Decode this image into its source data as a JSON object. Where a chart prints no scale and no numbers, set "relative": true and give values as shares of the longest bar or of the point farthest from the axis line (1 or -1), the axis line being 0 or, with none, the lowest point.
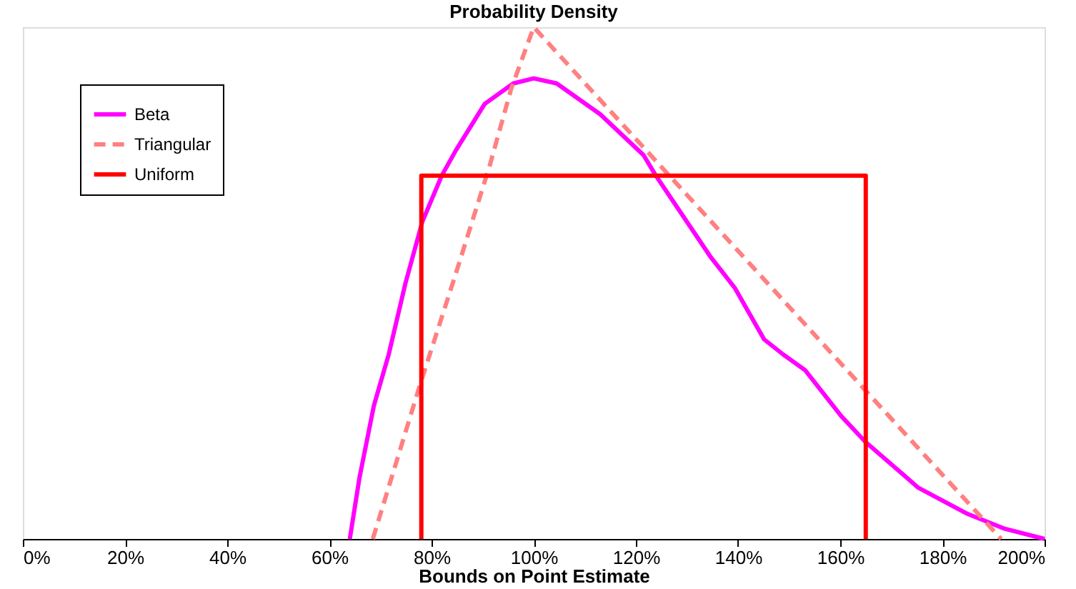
{
  "chart_data": {
    "type": "line",
    "title": "Probability Density",
    "xlabel": "Bounds on Point Estimate",
    "relative": true,
    "xlim": [
      0,
      200
    ],
    "xticks": [
      {
        "value": 0,
        "label": "0%"
      },
      {
        "value": 20,
        "label": "20%"
      },
      {
        "value": 40,
        "label": "40%"
      },
      {
        "value": 60,
        "label": "60%"
      },
      {
        "value": 80,
        "label": "80%"
      },
      {
        "value": 100,
        "label": "100%"
      },
      {
        "value": 120,
        "label": "120%"
      },
      {
        "value": 140,
        "label": "140%"
      },
      {
        "value": 160,
        "label": "160%"
      },
      {
        "value": 180,
        "label": "180%"
      },
      {
        "value": 200,
        "label": "200%"
      }
    ],
    "grid": false,
    "legend": "top left",
    "marker": "none",
    "series": [
      {
        "name": "Beta",
        "color": "#ff00ff",
        "line_style": "solid",
        "x": [
          64,
          65.9,
          68.7,
          71.6,
          74.9,
          78.2,
          82,
          84.8,
          90.4,
          96,
          100,
          104.5,
          113,
          121.5,
          123.9,
          134.7,
          139.4,
          145.1,
          148.9,
          153.1,
          160.2,
          164.9,
          175.3,
          184.7,
          192.2,
          200
        ],
        "values": [
          0,
          0.12,
          0.26,
          0.36,
          0.5,
          0.62,
          0.71,
          0.76,
          0.85,
          0.89,
          0.9,
          0.89,
          0.83,
          0.75,
          0.71,
          0.55,
          0.49,
          0.39,
          0.36,
          0.33,
          0.24,
          0.19,
          0.1,
          0.05,
          0.02,
          0
        ]
      },
      {
        "name": "Triangular",
        "color": "#ff8080",
        "line_style": "dashed",
        "x": [
          68.5,
          77.7,
          84.8,
          91.4,
          95.6,
          100,
          191.5
        ],
        "values": [
          0,
          0.3,
          0.52,
          0.73,
          0.88,
          1,
          0
        ]
      },
      {
        "name": "Uniform",
        "color": "#ff0000",
        "line_style": "solid",
        "x": [
          78,
          78,
          165,
          165
        ],
        "values": [
          0,
          0.71,
          0.71,
          0
        ]
      }
    ]
  }
}
